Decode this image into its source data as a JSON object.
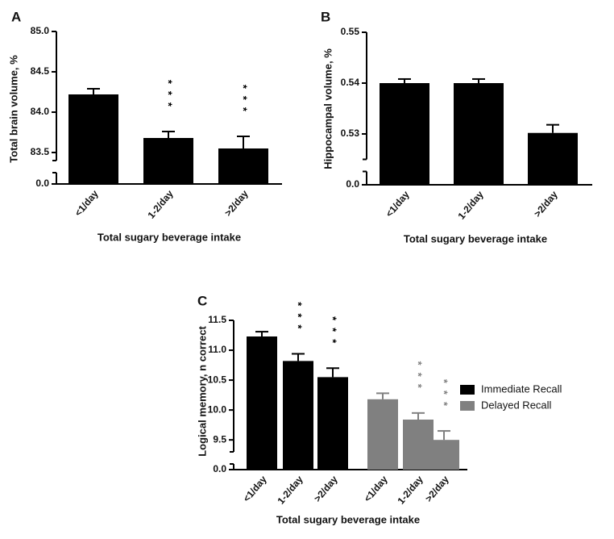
{
  "chart_data": [
    {
      "type": "bar",
      "label": "A",
      "y_label": "Total brain volume, %",
      "x_label": "Total sugary beverage intake",
      "categories": [
        "<1/day",
        "1-2/day",
        ">2/day"
      ],
      "values": [
        84.22,
        83.68,
        83.55
      ],
      "errors": [
        0.07,
        0.08,
        0.15
      ],
      "annotations": [
        null,
        "***",
        "***"
      ],
      "color": "#000000",
      "ylim": [
        83.4,
        85.0
      ],
      "yticks": [
        {
          "value": 85,
          "label": "85.0"
        },
        84.5,
        {
          "value": 84,
          "label": "84.0"
        },
        83.5,
        {
          "value": 0,
          "label": "0.0"
        }
      ]
    },
    {
      "type": "bar",
      "label": "B",
      "y_label": "Hippocampal volume, %",
      "x_label": "Total sugary beverage intake",
      "categories": [
        "<1/day",
        "1-2/day",
        ">2/day"
      ],
      "values": [
        0.54,
        0.54,
        0.5302
      ],
      "errors": [
        0.0008,
        0.0008,
        0.0016
      ],
      "color": "#000000",
      "ylim": [
        0.525,
        0.55
      ],
      "yticks": [
        0.55,
        0.54,
        0.53,
        {
          "value": 0,
          "label": "0.0"
        }
      ]
    },
    {
      "type": "bar",
      "label": "C",
      "y_label": "Logical memory, n correct",
      "x_label": "Total sugary beverage intake",
      "categories": [
        "<1/day",
        "1-2/day",
        ">2/day"
      ],
      "series": [
        {
          "name": "Immediate Recall",
          "color": "#000000",
          "values": [
            11.23,
            10.82,
            10.55
          ],
          "errors": [
            0.08,
            0.12,
            0.15
          ],
          "annotations": [
            null,
            "***",
            "***"
          ]
        },
        {
          "name": "Delayed Recall",
          "color": "#808080",
          "values": [
            10.18,
            9.84,
            9.5
          ],
          "errors": [
            0.1,
            0.11,
            0.15
          ],
          "annotations": [
            null,
            "***",
            "***"
          ]
        }
      ],
      "ylim": [
        9.3,
        11.5
      ],
      "yticks": [
        11.5,
        {
          "value": 11,
          "label": "11.0"
        },
        10.5,
        {
          "value": 10,
          "label": "10.0"
        },
        9.5,
        {
          "value": 0,
          "label": "0.0"
        }
      ]
    }
  ]
}
